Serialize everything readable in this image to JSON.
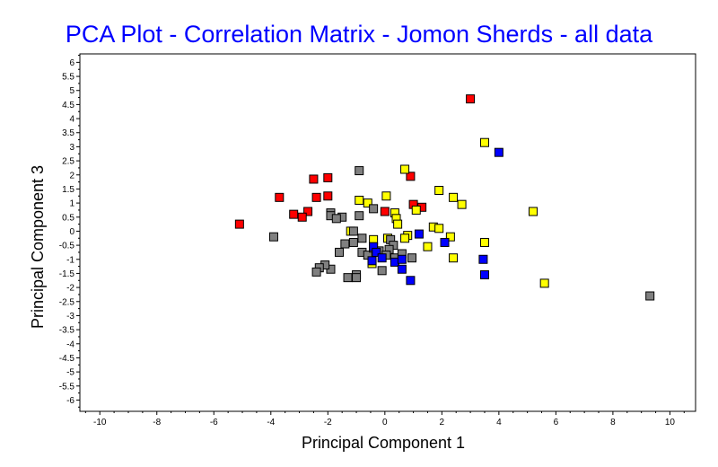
{
  "chart_data": {
    "type": "scatter",
    "title": "PCA Plot - Correlation Matrix - Jomon Sherds - all data",
    "xlabel": "Principal Component 1",
    "ylabel": "Principal Component 3",
    "xlim": [
      -10.7,
      10.9
    ],
    "ylim": [
      -6.4,
      6.3
    ],
    "x_ticks": [
      -10,
      -8,
      -6,
      -4,
      -2,
      0,
      2,
      4,
      6,
      8,
      10
    ],
    "y_ticks": [
      -6,
      -5.5,
      -5,
      -4.5,
      -4,
      -3.5,
      -3,
      -2.5,
      -2,
      -1.5,
      -1,
      -0.5,
      0,
      0.5,
      1,
      1.5,
      2,
      2.5,
      3,
      3.5,
      4,
      4.5,
      5,
      5.5,
      6
    ],
    "colors": {
      "title": "#0000ff",
      "red": "#ff0000",
      "yellow": "#ffff00",
      "gray": "#808080",
      "blue": "#0000ff",
      "marker_edge": "#000000"
    },
    "series": [
      {
        "name": "red",
        "color": "#ff0000",
        "points": [
          [
            3.0,
            4.7
          ],
          [
            -2.0,
            1.9
          ],
          [
            -2.5,
            1.85
          ],
          [
            -2.0,
            1.25
          ],
          [
            -2.4,
            1.2
          ],
          [
            -3.7,
            1.2
          ],
          [
            -2.7,
            0.7
          ],
          [
            -2.9,
            0.5
          ],
          [
            -3.2,
            0.6
          ],
          [
            -5.1,
            0.25
          ],
          [
            0.9,
            1.95
          ],
          [
            0.0,
            0.7
          ],
          [
            1.0,
            0.95
          ],
          [
            1.3,
            0.85
          ]
        ]
      },
      {
        "name": "yellow",
        "color": "#ffff00",
        "points": [
          [
            3.5,
            3.15
          ],
          [
            0.7,
            2.2
          ],
          [
            1.9,
            1.45
          ],
          [
            2.4,
            1.2
          ],
          [
            2.7,
            0.95
          ],
          [
            5.2,
            0.7
          ],
          [
            0.05,
            1.25
          ],
          [
            -0.9,
            1.1
          ],
          [
            -0.6,
            1.0
          ],
          [
            1.1,
            0.75
          ],
          [
            0.35,
            0.65
          ],
          [
            0.4,
            0.45
          ],
          [
            0.45,
            0.25
          ],
          [
            1.7,
            0.15
          ],
          [
            1.9,
            0.1
          ],
          [
            0.8,
            -0.15
          ],
          [
            0.7,
            -0.25
          ],
          [
            2.3,
            -0.2
          ],
          [
            1.5,
            -0.55
          ],
          [
            3.5,
            -0.4
          ],
          [
            2.4,
            -0.95
          ],
          [
            5.6,
            -1.85
          ],
          [
            -1.2,
            0.0
          ],
          [
            -0.4,
            -0.3
          ],
          [
            0.1,
            -0.25
          ],
          [
            -0.45,
            -1.15
          ]
        ]
      },
      {
        "name": "gray",
        "color": "#808080",
        "points": [
          [
            -0.9,
            2.15
          ],
          [
            -1.9,
            0.65
          ],
          [
            -1.9,
            0.55
          ],
          [
            -1.5,
            0.5
          ],
          [
            -1.7,
            0.45
          ],
          [
            -0.9,
            0.55
          ],
          [
            -0.4,
            0.8
          ],
          [
            -3.9,
            -0.2
          ],
          [
            -1.1,
            0.0
          ],
          [
            -0.8,
            -0.25
          ],
          [
            -1.1,
            -0.4
          ],
          [
            -1.4,
            -0.45
          ],
          [
            -1.6,
            -0.75
          ],
          [
            -0.8,
            -0.75
          ],
          [
            -0.6,
            -0.85
          ],
          [
            -0.4,
            -0.6
          ],
          [
            -0.2,
            -0.7
          ],
          [
            0.2,
            -0.3
          ],
          [
            0.3,
            -0.5
          ],
          [
            0.15,
            -0.65
          ],
          [
            0.35,
            -0.95
          ],
          [
            0.6,
            -0.8
          ],
          [
            0.95,
            -0.95
          ],
          [
            -0.1,
            -1.4
          ],
          [
            -1.9,
            -1.35
          ],
          [
            -2.1,
            -1.2
          ],
          [
            -2.3,
            -1.3
          ],
          [
            -2.4,
            -1.45
          ],
          [
            -1.3,
            -1.65
          ],
          [
            -1.0,
            -1.55
          ],
          [
            -1.0,
            -1.65
          ],
          [
            9.3,
            -2.3
          ],
          [
            0.05,
            -0.85
          ]
        ]
      },
      {
        "name": "blue",
        "color": "#0000ff",
        "points": [
          [
            4.0,
            2.8
          ],
          [
            1.2,
            -0.1
          ],
          [
            2.1,
            -0.4
          ],
          [
            -0.4,
            -0.55
          ],
          [
            -0.3,
            -0.75
          ],
          [
            -0.1,
            -0.95
          ],
          [
            -0.45,
            -1.05
          ],
          [
            0.35,
            -1.1
          ],
          [
            0.6,
            -1.0
          ],
          [
            0.6,
            -1.35
          ],
          [
            0.9,
            -1.75
          ],
          [
            3.45,
            -1.0
          ],
          [
            3.5,
            -1.55
          ]
        ]
      }
    ]
  }
}
